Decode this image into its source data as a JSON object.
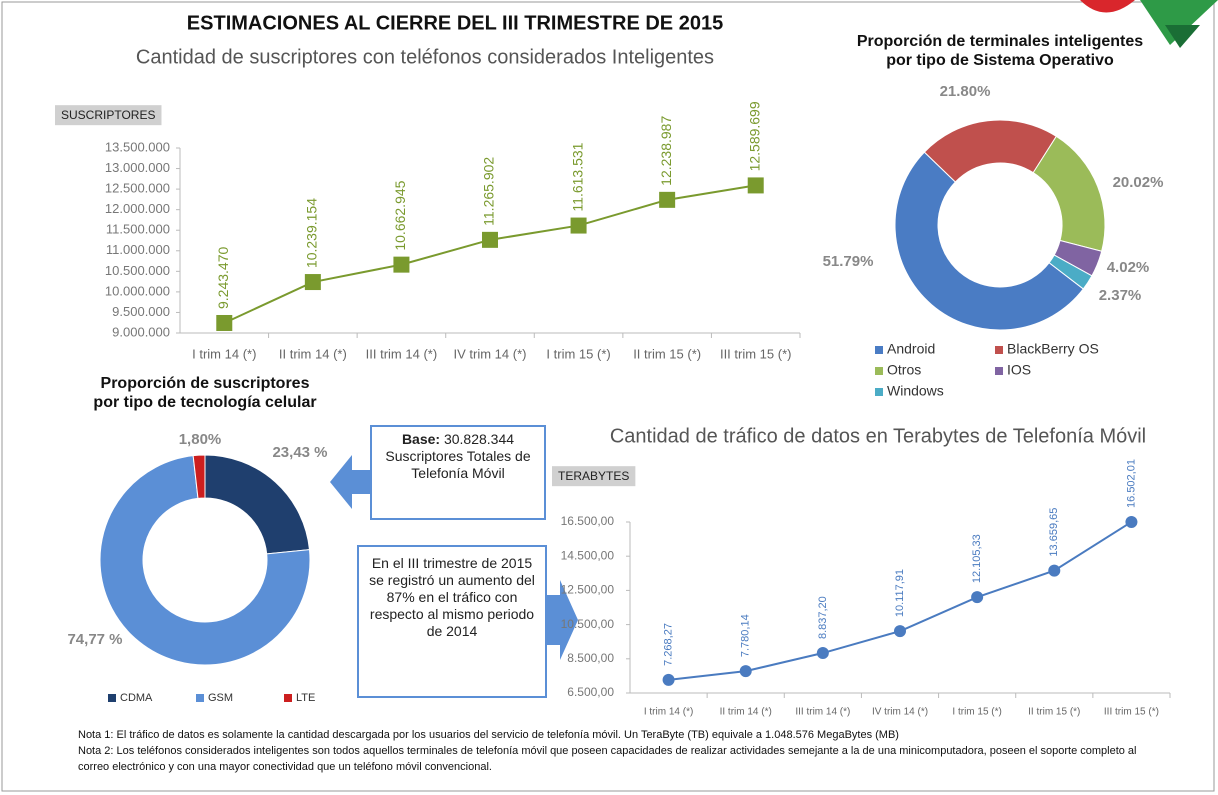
{
  "title": "ESTIMACIONES AL CIERRE DEL III TRIMESTRE DE 2015",
  "callouts": [
    {
      "bold": "Base:",
      "text": "30.828.344 Suscriptores Totales de Telefonía Móvil"
    },
    {
      "text": "En el III trimestre de 2015 se registró un aumento del 87% en el tráfico con respecto al mismo periodo de 2014"
    }
  ],
  "notes": [
    "Nota 1: El tráfico de datos es solamente la cantidad descargada por los usuarios del servicio de telefonía móvil. Un TeraByte (TB) equivale a 1.048.576 MegaBytes (MB)",
    "Nota 2: Los teléfonos considerados inteligentes son todos aquellos terminales de telefonía móvil que poseen capacidades de realizar actividades semejante a la de una minicomputadora, poseen el soporte completo al correo electrónico y con una mayor conectividad que un teléfono móvil convencional."
  ],
  "chart_data": [
    {
      "type": "line",
      "title": "Cantidad de suscriptores con teléfonos considerados Inteligentes",
      "y_label": "SUSCRIPTORES",
      "categories": [
        "I trim 14 (*)",
        "II trim 14 (*)",
        "III trim 14 (*)",
        "IV trim 14 (*)",
        "I trim 15 (*)",
        "II trim 15 (*)",
        "III trim 15 (*)"
      ],
      "values": [
        9243470,
        10239154,
        10662945,
        11265902,
        11613531,
        12238987,
        12589699
      ],
      "value_labels": [
        "9.243.470",
        "10.239.154",
        "10.662.945",
        "11.265.902",
        "11.613.531",
        "12.238.987",
        "12.589.699"
      ],
      "color": "#7a9a2e",
      "ylim": [
        9000000,
        13500000
      ],
      "yticks": [
        {
          "value": 9000000,
          "label": "9.000.000"
        },
        {
          "value": 9500000,
          "label": "9.500.000"
        },
        {
          "value": 10000000,
          "label": "10.000.000"
        },
        {
          "value": 10500000,
          "label": "10.500.000"
        },
        {
          "value": 11000000,
          "label": "11.000.000"
        },
        {
          "value": 11500000,
          "label": "11.500.000"
        },
        {
          "value": 12000000,
          "label": "12.000.000"
        },
        {
          "value": 12500000,
          "label": "12.500.000"
        },
        {
          "value": 13000000,
          "label": "13.000.000"
        },
        {
          "value": 13500000,
          "label": "13.500.000"
        }
      ]
    },
    {
      "type": "donut",
      "title": [
        "Proporción de terminales inteligentes",
        "por tipo de Sistema Operativo"
      ],
      "categories": [
        "Android",
        "BlackBerry OS",
        "Otros",
        "IOS",
        "Windows"
      ],
      "values": [
        51.79,
        21.8,
        20.02,
        4.02,
        2.37
      ],
      "value_labels": [
        "51.79%",
        "21.80%",
        "20.02%",
        "4.02%",
        "2.37%"
      ],
      "colors": [
        "#4a7cc4",
        "#c0504d",
        "#9bbb59",
        "#8064a2",
        "#4bacc6"
      ]
    },
    {
      "type": "donut",
      "title": [
        "Proporción de suscriptores",
        "por tipo de tecnología celular"
      ],
      "categories": [
        "CDMA",
        "GSM",
        "LTE"
      ],
      "values": [
        23.43,
        74.77,
        1.8
      ],
      "value_labels": [
        "23,43 %",
        "74,77 %",
        "1,80%"
      ],
      "colors": [
        "#1f3f6e",
        "#5b8fd6",
        "#cc1f1f"
      ]
    },
    {
      "type": "line",
      "title": "Cantidad de tráfico de datos en Terabytes de Telefonía Móvil",
      "y_label": "TERABYTES",
      "categories": [
        "I trim 14 (*)",
        "II trim 14 (*)",
        "III trim 14 (*)",
        "IV trim 14 (*)",
        "I trim 15 (*)",
        "II trim 15 (*)",
        "III trim 15 (*)"
      ],
      "values": [
        7268.27,
        7780.14,
        8837.2,
        10117.91,
        12105.33,
        13659.65,
        16502.01
      ],
      "value_labels": [
        "7.268,27",
        "7.780,14",
        "8.837,20",
        "10.117,91",
        "12.105,33",
        "13.659,65",
        "16.502,01"
      ],
      "color": "#4a7bc0",
      "ylim": [
        6500,
        16500
      ],
      "yticks": [
        {
          "value": 6500,
          "label": "6.500,00"
        },
        {
          "value": 8500,
          "label": "8.500,00"
        },
        {
          "value": 10500,
          "label": "10.500,00"
        },
        {
          "value": 12500,
          "label": "12.500,00"
        },
        {
          "value": 14500,
          "label": "14.500,00"
        },
        {
          "value": 16500,
          "label": "16.500,00"
        }
      ]
    }
  ]
}
